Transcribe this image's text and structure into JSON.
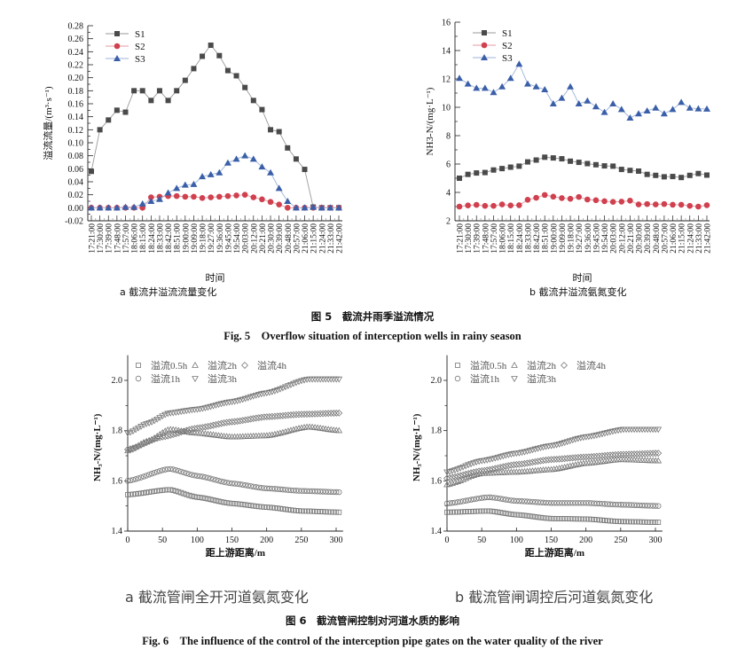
{
  "figure5": {
    "caption_cn": "图 5　截流井雨季溢流情况",
    "caption_en": "Fig. 5　Overflow situation of interception wells in rainy season"
  },
  "figure6": {
    "caption_cn": "图 6　截流管闸控制对河道水质的影响",
    "caption_en": "Fig. 6　The influence of the control of the interception pipe gates on the water quality of the river"
  },
  "colors": {
    "S1": "#4a4a4a",
    "S2": "#d0404e",
    "S3": "#3a5fa8",
    "S1_line": "#9a9a9a",
    "S2_line": "#e49aa2",
    "S3_line": "#9db3d8",
    "hollow": "#777777"
  },
  "chart_data": [
    {
      "id": "fig5a",
      "type": "line",
      "subtitle": "a  截流井溢流流量变化",
      "xlabel": "时间",
      "ylabel": "溢流流量/(m³·s⁻¹)",
      "ylim": [
        -0.02,
        0.28
      ],
      "yticks": [
        "-0.02",
        "0.00",
        "0.02",
        "0.04",
        "0.06",
        "0.08",
        "0.10",
        "0.12",
        "0.14",
        "0.16",
        "0.18",
        "0.20",
        "0.22",
        "0.24",
        "0.26",
        "0.28"
      ],
      "legend_position": "top-left",
      "categories": [
        "17:21:00",
        "17:30:00",
        "17:39:00",
        "17:48:00",
        "17:57:00",
        "18:06:00",
        "18:15:00",
        "18:24:00",
        "18:33:00",
        "18:42:00",
        "18:51:00",
        "19:00:00",
        "19:09:00",
        "19:18:00",
        "19:27:00",
        "19:36:00",
        "19:45:00",
        "19:54:00",
        "20:03:00",
        "20:12:00",
        "20:21:00",
        "20:30:00",
        "20:39:00",
        "20:48:00",
        "20:57:00",
        "21:06:00",
        "21:15:00",
        "21:24:00",
        "21:33:00",
        "21:42:00"
      ],
      "series": [
        {
          "name": "S1",
          "marker": "square",
          "values": [
            0.056,
            0.12,
            0.135,
            0.15,
            0.147,
            0.18,
            0.18,
            0.165,
            0.18,
            0.165,
            0.18,
            0.196,
            0.214,
            0.233,
            0.25,
            0.234,
            0.211,
            0.203,
            0.185,
            0.165,
            0.151,
            0.12,
            0.117,
            0.092,
            0.075,
            0.059,
            0.001,
            0.0,
            0.0,
            0.0
          ]
        },
        {
          "name": "S2",
          "marker": "circle",
          "values": [
            0,
            0,
            0,
            0,
            0,
            0,
            0,
            0.016,
            0.017,
            0.018,
            0.018,
            0.017,
            0.017,
            0.015,
            0.016,
            0.017,
            0.018,
            0.019,
            0.02,
            0.016,
            0.013,
            0.009,
            0.005,
            0,
            0,
            0,
            0,
            0,
            0,
            0
          ]
        },
        {
          "name": "S3",
          "marker": "triangle",
          "values": [
            0,
            0,
            0,
            0,
            0.001,
            0.001,
            0.006,
            0.01,
            0.013,
            0.023,
            0.03,
            0.035,
            0.036,
            0.048,
            0.051,
            0.054,
            0.069,
            0.075,
            0.08,
            0.075,
            0.063,
            0.054,
            0.03,
            0.01,
            0,
            0,
            0.001,
            0,
            0,
            0
          ]
        }
      ]
    },
    {
      "id": "fig5b",
      "type": "line",
      "subtitle": "b  截流井溢流氨氮变化",
      "xlabel": "时间",
      "ylabel": "NH3-N/(mg·L⁻¹)",
      "ylim": [
        2,
        16
      ],
      "yticks": [
        "2",
        "4",
        "6",
        "8",
        "10",
        "12",
        "14",
        "16"
      ],
      "legend_position": "top-left",
      "categories": [
        "17:21:00",
        "17:30:00",
        "17:39:00",
        "17:48:00",
        "17:57:00",
        "18:06:00",
        "18:15:00",
        "18:24:00",
        "18:33:00",
        "18:42:00",
        "18:51:00",
        "19:00:00",
        "19:09:00",
        "19:18:00",
        "19:27:00",
        "19:36:00",
        "19:45:00",
        "19:54:00",
        "20:03:00",
        "20:12:00",
        "20:21:00",
        "20:30:00",
        "20:39:00",
        "20:48:00",
        "20:57:00",
        "21:06:00",
        "21:15:00",
        "21:24:00",
        "21:33:00",
        "21:42:00"
      ],
      "series": [
        {
          "name": "S1",
          "marker": "square",
          "values": [
            5.0,
            5.27,
            5.37,
            5.4,
            5.58,
            5.68,
            5.78,
            5.85,
            6.15,
            6.28,
            6.48,
            6.43,
            6.37,
            6.2,
            6.12,
            6.03,
            5.95,
            5.87,
            5.85,
            5.62,
            5.55,
            5.5,
            5.27,
            5.2,
            5.1,
            5.12,
            5.05,
            5.2,
            5.33,
            5.22
          ]
        },
        {
          "name": "S2",
          "marker": "circle",
          "values": [
            3.0,
            3.08,
            3.12,
            3.05,
            3.05,
            3.15,
            3.08,
            3.1,
            3.48,
            3.62,
            3.82,
            3.7,
            3.6,
            3.55,
            3.68,
            3.5,
            3.45,
            3.38,
            3.33,
            3.35,
            3.42,
            3.15,
            3.18,
            3.15,
            3.18,
            3.13,
            3.13,
            3.05,
            3.0,
            3.1
          ]
        },
        {
          "name": "S3",
          "marker": "triangle",
          "values": [
            12.05,
            11.65,
            11.35,
            11.35,
            11.05,
            11.45,
            12.05,
            13.05,
            11.65,
            11.45,
            11.25,
            10.25,
            10.65,
            11.45,
            10.25,
            10.45,
            10.05,
            9.65,
            10.25,
            9.85,
            9.25,
            9.55,
            9.75,
            9.95,
            9.55,
            9.85,
            10.35,
            9.95,
            9.9,
            9.88
          ]
        }
      ]
    },
    {
      "id": "fig6a",
      "type": "scatter",
      "subtitle": "a   截流管闸全开河道氨氮变化",
      "xlabel": "距上游距离/m",
      "ylabel": "NH₃-N/(mg·L⁻¹)",
      "xlim": [
        0,
        310
      ],
      "ylim": [
        1.4,
        2.1
      ],
      "xticks": [
        "0",
        "50",
        "100",
        "150",
        "200",
        "250",
        "300"
      ],
      "yticks": [
        "1.4",
        "1.6",
        "1.8",
        "2.0"
      ],
      "legend_position": "top-left",
      "series": [
        {
          "name": "溢流0.5h",
          "marker": "square",
          "points": [
            [
              0,
              1.545
            ],
            [
              60,
              1.565
            ],
            [
              100,
              1.535
            ],
            [
              150,
              1.51
            ],
            [
              200,
              1.495
            ],
            [
              250,
              1.48
            ],
            [
              305,
              1.475
            ]
          ]
        },
        {
          "name": "溢流1h",
          "marker": "circle",
          "points": [
            [
              0,
              1.6
            ],
            [
              60,
              1.648
            ],
            [
              100,
              1.62
            ],
            [
              150,
              1.59
            ],
            [
              200,
              1.57
            ],
            [
              250,
              1.56
            ],
            [
              305,
              1.555
            ]
          ]
        },
        {
          "name": "溢流2h",
          "marker": "triangle-up",
          "points": [
            [
              0,
              1.72
            ],
            [
              30,
              1.76
            ],
            [
              60,
              1.805
            ],
            [
              100,
              1.79
            ],
            [
              150,
              1.775
            ],
            [
              200,
              1.78
            ],
            [
              260,
              1.815
            ],
            [
              305,
              1.8
            ]
          ]
        },
        {
          "name": "溢流3h",
          "marker": "triangle-down",
          "points": [
            [
              0,
              1.79
            ],
            [
              30,
              1.83
            ],
            [
              60,
              1.87
            ],
            [
              100,
              1.885
            ],
            [
              150,
              1.915
            ],
            [
              200,
              1.95
            ],
            [
              260,
              2.005
            ],
            [
              305,
              2.005
            ]
          ]
        },
        {
          "name": "溢流4h",
          "marker": "diamond",
          "points": [
            [
              0,
              1.725
            ],
            [
              50,
              1.775
            ],
            [
              100,
              1.81
            ],
            [
              150,
              1.835
            ],
            [
              200,
              1.855
            ],
            [
              250,
              1.865
            ],
            [
              305,
              1.87
            ]
          ]
        }
      ]
    },
    {
      "id": "fig6b",
      "type": "scatter",
      "subtitle": "b   截流管闸调控后河道氨氮变化",
      "xlabel": "距上游距离/m",
      "ylabel": "NH₃-N/(mg·L⁻¹)",
      "xlim": [
        0,
        310
      ],
      "ylim": [
        1.4,
        2.1
      ],
      "xticks": [
        "0",
        "50",
        "100",
        "150",
        "200",
        "250",
        "300"
      ],
      "yticks": [
        "1.4",
        "1.6",
        "1.8",
        "2.0"
      ],
      "legend_position": "top-left",
      "series": [
        {
          "name": "溢流0.5h",
          "marker": "square",
          "points": [
            [
              0,
              1.475
            ],
            [
              60,
              1.48
            ],
            [
              100,
              1.465
            ],
            [
              150,
              1.45
            ],
            [
              200,
              1.448
            ],
            [
              250,
              1.438
            ],
            [
              305,
              1.435
            ]
          ]
        },
        {
          "name": "溢流1h",
          "marker": "circle",
          "points": [
            [
              0,
              1.51
            ],
            [
              60,
              1.535
            ],
            [
              100,
              1.52
            ],
            [
              150,
              1.512
            ],
            [
              200,
              1.512
            ],
            [
              250,
              1.505
            ],
            [
              305,
              1.5
            ]
          ]
        },
        {
          "name": "溢流2h",
          "marker": "triangle-up",
          "points": [
            [
              0,
              1.585
            ],
            [
              50,
              1.63
            ],
            [
              100,
              1.635
            ],
            [
              150,
              1.645
            ],
            [
              200,
              1.67
            ],
            [
              250,
              1.685
            ],
            [
              305,
              1.68
            ]
          ]
        },
        {
          "name": "溢流3h",
          "marker": "triangle-down",
          "points": [
            [
              0,
              1.635
            ],
            [
              50,
              1.68
            ],
            [
              100,
              1.71
            ],
            [
              150,
              1.74
            ],
            [
              200,
              1.775
            ],
            [
              255,
              1.805
            ],
            [
              305,
              1.805
            ]
          ]
        },
        {
          "name": "溢流4h",
          "marker": "diamond",
          "points": [
            [
              0,
              1.61
            ],
            [
              50,
              1.64
            ],
            [
              100,
              1.665
            ],
            [
              150,
              1.685
            ],
            [
              200,
              1.695
            ],
            [
              250,
              1.705
            ],
            [
              305,
              1.71
            ]
          ]
        }
      ]
    }
  ]
}
